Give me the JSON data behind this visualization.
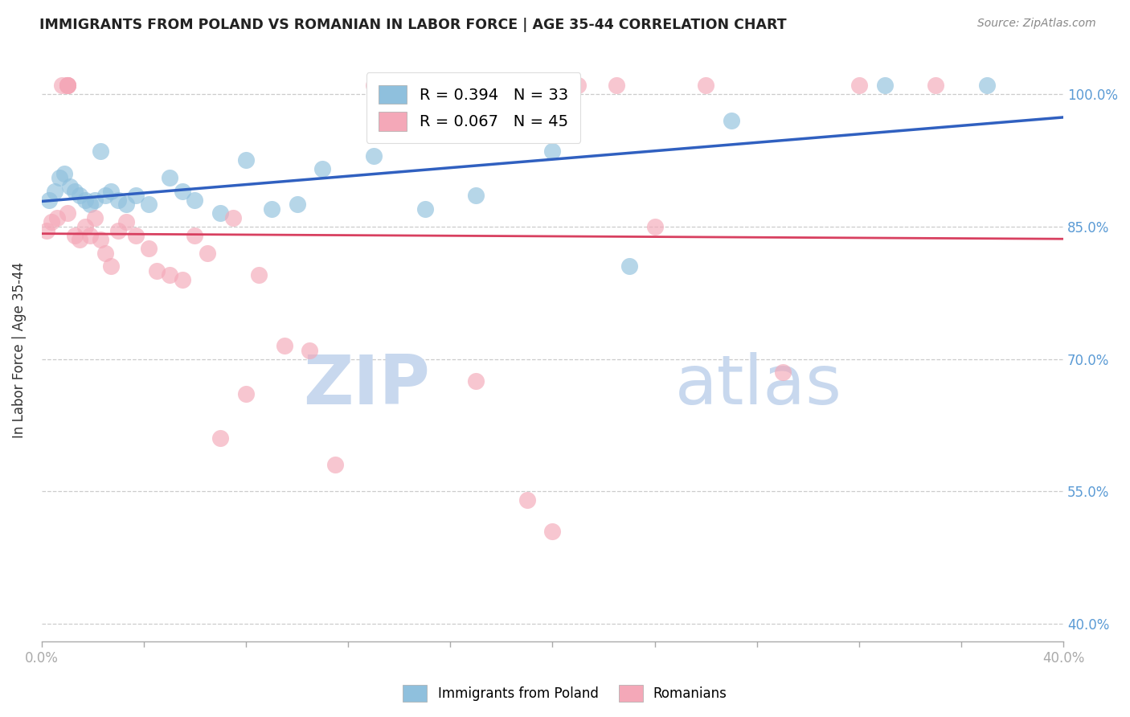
{
  "title": "IMMIGRANTS FROM POLAND VS ROMANIAN IN LABOR FORCE | AGE 35-44 CORRELATION CHART",
  "source": "Source: ZipAtlas.com",
  "ylabel": "In Labor Force | Age 35-44",
  "yticks": [
    40.0,
    55.0,
    70.0,
    85.0,
    100.0
  ],
  "ytick_labels": [
    "40.0%",
    "55.0%",
    "70.0%",
    "85.0%",
    "100.0%"
  ],
  "xmin": 0.0,
  "xmax": 40.0,
  "ymin": 38.0,
  "ymax": 104.0,
  "legend_blue_r": "R = 0.394",
  "legend_blue_n": "N = 33",
  "legend_pink_r": "R = 0.067",
  "legend_pink_n": "N = 45",
  "blue_color": "#8FC0DD",
  "pink_color": "#F4A8B8",
  "trend_blue_color": "#3060C0",
  "trend_pink_color": "#D84060",
  "axis_color": "#5B9BD5",
  "grid_color": "#CCCCCC",
  "title_color": "#222222",
  "watermark_color": "#C8D8EE",
  "blue_scatter_x": [
    0.3,
    0.5,
    0.7,
    0.9,
    1.1,
    1.3,
    1.5,
    1.7,
    1.9,
    2.1,
    2.3,
    2.5,
    2.7,
    3.0,
    3.3,
    3.7,
    4.2,
    5.0,
    5.5,
    6.0,
    7.0,
    8.0,
    9.0,
    10.0,
    11.0,
    13.0,
    15.0,
    17.0,
    20.0,
    23.0,
    27.0,
    33.0,
    37.0
  ],
  "blue_scatter_y": [
    88.0,
    89.0,
    90.5,
    91.0,
    89.5,
    89.0,
    88.5,
    88.0,
    87.5,
    88.0,
    93.5,
    88.5,
    89.0,
    88.0,
    87.5,
    88.5,
    87.5,
    90.5,
    89.0,
    88.0,
    86.5,
    92.5,
    87.0,
    87.5,
    91.5,
    93.0,
    87.0,
    88.5,
    93.5,
    80.5,
    97.0,
    101.0,
    101.0
  ],
  "pink_scatter_x": [
    0.2,
    0.4,
    0.6,
    0.8,
    1.0,
    1.0,
    1.0,
    1.0,
    1.0,
    1.3,
    1.5,
    1.7,
    1.9,
    2.1,
    2.3,
    2.5,
    2.7,
    3.0,
    3.3,
    3.7,
    4.2,
    4.5,
    5.0,
    5.5,
    6.0,
    6.5,
    7.0,
    7.5,
    8.0,
    8.5,
    9.5,
    10.5,
    11.5,
    13.0,
    15.0,
    17.0,
    19.0,
    20.0,
    21.0,
    22.5,
    24.0,
    26.0,
    29.0,
    32.0,
    35.0
  ],
  "pink_scatter_y": [
    84.5,
    85.5,
    86.0,
    101.0,
    101.0,
    101.0,
    101.0,
    101.0,
    86.5,
    84.0,
    83.5,
    85.0,
    84.0,
    86.0,
    83.5,
    82.0,
    80.5,
    84.5,
    85.5,
    84.0,
    82.5,
    80.0,
    79.5,
    79.0,
    84.0,
    82.0,
    61.0,
    86.0,
    66.0,
    79.5,
    71.5,
    71.0,
    58.0,
    101.0,
    101.0,
    67.5,
    54.0,
    50.5,
    101.0,
    101.0,
    85.0,
    101.0,
    68.5,
    101.0,
    101.0
  ]
}
